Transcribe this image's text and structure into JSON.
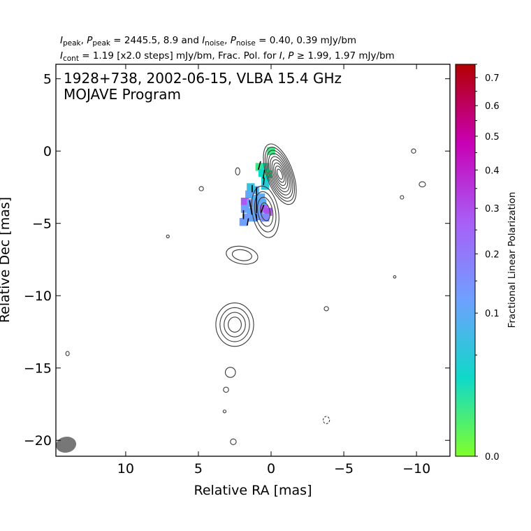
{
  "header": {
    "line1_parts": [
      {
        "t": "I",
        "it": true
      },
      {
        "t": "peak",
        "sub": true
      },
      {
        "t": ", "
      },
      {
        "t": "P",
        "it": true
      },
      {
        "t": "peak",
        "sub": true
      },
      {
        "t": " = 2445.5, 8.9 and "
      },
      {
        "t": "I",
        "it": true
      },
      {
        "t": "noise",
        "sub": true
      },
      {
        "t": ", "
      },
      {
        "t": "P",
        "it": true
      },
      {
        "t": "noise",
        "sub": true
      },
      {
        "t": " = 0.40, 0.39 mJy/bm"
      }
    ],
    "line2_parts": [
      {
        "t": "I",
        "it": true
      },
      {
        "t": "cont",
        "sub": true
      },
      {
        "t": " = 1.19 [x2.0 steps] mJy/bm, Frac. Pol. for "
      },
      {
        "t": "I",
        "it": true
      },
      {
        "t": ", "
      },
      {
        "t": "P",
        "it": true
      },
      {
        "t": " ≥ 1.99, 1.97 mJy/bm"
      }
    ]
  },
  "chart_data": {
    "type": "heatmap",
    "title": "1928+738, 2002-06-15, VLBA 15.4 GHz",
    "subtitle": "MOJAVE Program",
    "xlabel": "Relative RA [mas]",
    "ylabel": "Relative Dec [mas]",
    "xlim": [
      14.8,
      -12.3
    ],
    "ylim": [
      -21.1,
      6.0
    ],
    "xticks": [
      10,
      5,
      0,
      -5,
      -10
    ],
    "xtick_labels": [
      "10",
      "5",
      "0",
      "−5",
      "−10"
    ],
    "yticks": [
      5,
      0,
      -5,
      -10,
      -15,
      -20
    ],
    "ytick_labels": [
      "5",
      "0",
      "−5",
      "−10",
      "−15",
      "−20"
    ],
    "colorbar": {
      "label": "Fractional Linear Polarization",
      "range": [
        0.0,
        0.75
      ],
      "ticks": [
        0.0,
        0.1,
        0.2,
        0.3,
        0.4,
        0.5,
        0.6,
        0.7
      ],
      "tick_labels": [
        "0.0",
        "0.1",
        "0.2",
        "0.3",
        "0.4",
        "0.5",
        "0.6",
        "0.7"
      ],
      "scale": "sqrt",
      "colormap": [
        "#7fff2a",
        "#0fd9c9",
        "#6fa0ff",
        "#a95ef6",
        "#c800b4",
        "#b20000"
      ]
    },
    "intensity_contours": [
      {
        "name": "core-jet",
        "cx": -0.6,
        "cy": -1.6,
        "rx": 0.9,
        "ry": 2.2,
        "angle": -20,
        "levels": 9
      },
      {
        "name": "inner-jet",
        "cx": 0.4,
        "cy": -4.2,
        "rx": 0.9,
        "ry": 1.8,
        "angle": -10,
        "levels": 4
      },
      {
        "name": "knot-7",
        "cx": 2.0,
        "cy": -7.2,
        "rx": 1.1,
        "ry": 0.6,
        "angle": 10,
        "levels": 2
      },
      {
        "name": "knot-12",
        "cx": 2.5,
        "cy": -12.0,
        "rx": 1.3,
        "ry": 1.5,
        "angle": 0,
        "levels": 4
      },
      {
        "name": "blob-15",
        "cx": 2.8,
        "cy": -15.3,
        "rx": 0.35,
        "ry": 0.35,
        "angle": 0,
        "levels": 1
      },
      {
        "name": "blob-16",
        "cx": 3.1,
        "cy": -16.5,
        "rx": 0.18,
        "ry": 0.18,
        "angle": 0,
        "levels": 1
      },
      {
        "name": "blob-18",
        "cx": 3.2,
        "cy": -18.0,
        "rx": 0.1,
        "ry": 0.1,
        "angle": 0,
        "levels": 1
      },
      {
        "name": "blob-20",
        "cx": 2.6,
        "cy": -20.1,
        "rx": 0.2,
        "ry": 0.2,
        "angle": 0,
        "levels": 1
      },
      {
        "name": "noise-1",
        "cx": 2.3,
        "cy": -1.4,
        "rx": 0.15,
        "ry": 0.25,
        "angle": 0,
        "levels": 1
      },
      {
        "name": "noise-2",
        "cx": 4.8,
        "cy": -2.6,
        "rx": 0.15,
        "ry": 0.15,
        "angle": 0,
        "levels": 1
      },
      {
        "name": "noise-3",
        "cx": 7.1,
        "cy": -5.9,
        "rx": 0.1,
        "ry": 0.1,
        "angle": 0,
        "levels": 1
      },
      {
        "name": "noise-4",
        "cx": 14.0,
        "cy": -14.0,
        "rx": 0.12,
        "ry": 0.15,
        "angle": 0,
        "levels": 1
      },
      {
        "name": "noise-5",
        "cx": -9.8,
        "cy": 0.0,
        "rx": 0.15,
        "ry": 0.15,
        "angle": 0,
        "levels": 1
      },
      {
        "name": "noise-6",
        "cx": -10.4,
        "cy": -2.3,
        "rx": 0.22,
        "ry": 0.18,
        "angle": 0,
        "levels": 1
      },
      {
        "name": "noise-7",
        "cx": -9.0,
        "cy": -3.2,
        "rx": 0.12,
        "ry": 0.12,
        "angle": 0,
        "levels": 1
      },
      {
        "name": "noise-8",
        "cx": -8.5,
        "cy": -8.7,
        "rx": 0.08,
        "ry": 0.08,
        "angle": 0,
        "levels": 1
      },
      {
        "name": "noise-9",
        "cx": -3.8,
        "cy": -10.9,
        "rx": 0.15,
        "ry": 0.15,
        "angle": 0,
        "levels": 1
      },
      {
        "name": "noise-10",
        "cx": -3.8,
        "cy": -18.6,
        "rx": 0.22,
        "ry": 0.25,
        "angle": 0,
        "levels": 1,
        "dashed": true
      }
    ],
    "beam": {
      "ra": 14.1,
      "dec": -20.3,
      "major": 0.7,
      "minor": 0.55,
      "angle": -10
    },
    "polarization_pixels": [
      {
        "ra": 0.0,
        "dec": 0.0,
        "frac": 0.01
      },
      {
        "ra": 0.8,
        "dec": -1.1,
        "frac": 0.01
      },
      {
        "ra": 0.4,
        "dec": -1.1,
        "frac": 0.02
      },
      {
        "ra": 0.6,
        "dec": -1.5,
        "frac": 0.03
      },
      {
        "ra": 0.2,
        "dec": -1.6,
        "frac": 0.01
      },
      {
        "ra": 0.4,
        "dec": -2.0,
        "frac": 0.03
      },
      {
        "ra": 1.1,
        "dec": -2.7,
        "frac": 0.09
      },
      {
        "ra": 1.4,
        "dec": -2.5,
        "frac": 0.06
      },
      {
        "ra": 0.4,
        "dec": -2.4,
        "frac": 0.05
      },
      {
        "ra": 1.5,
        "dec": -3.0,
        "frac": 0.1
      },
      {
        "ra": 1.1,
        "dec": -3.3,
        "frac": 0.09
      },
      {
        "ra": 0.7,
        "dec": -3.2,
        "frac": 0.1
      },
      {
        "ra": 1.8,
        "dec": -3.5,
        "frac": 0.28
      },
      {
        "ra": 1.4,
        "dec": -3.6,
        "frac": 0.12
      },
      {
        "ra": 1.0,
        "dec": -3.7,
        "frac": 0.11
      },
      {
        "ra": 0.6,
        "dec": -3.6,
        "frac": 0.1
      },
      {
        "ra": 1.8,
        "dec": -4.0,
        "frac": 0.12
      },
      {
        "ra": 1.4,
        "dec": -4.2,
        "frac": 0.1
      },
      {
        "ra": 1.0,
        "dec": -4.1,
        "frac": 0.11
      },
      {
        "ra": 0.5,
        "dec": -4.0,
        "frac": 0.26
      },
      {
        "ra": 0.2,
        "dec": -4.2,
        "frac": 0.3
      },
      {
        "ra": 1.7,
        "dec": -4.6,
        "frac": 0.13
      },
      {
        "ra": 1.2,
        "dec": -4.6,
        "frac": 0.11
      },
      {
        "ra": 0.8,
        "dec": -4.5,
        "frac": 0.12
      },
      {
        "ra": 0.4,
        "dec": -4.6,
        "frac": 0.16
      },
      {
        "ra": 1.9,
        "dec": -4.9,
        "frac": 0.12
      }
    ],
    "evpa_vectors": [
      {
        "ra": 0.8,
        "dec": -1.0,
        "angle": 75,
        "length": 0.6
      },
      {
        "ra": 0.5,
        "dec": -1.6,
        "angle": 80,
        "length": 0.6
      },
      {
        "ra": 0.5,
        "dec": -2.1,
        "angle": 85,
        "length": 0.5
      },
      {
        "ra": 1.3,
        "dec": -2.6,
        "angle": 90,
        "length": 0.5
      },
      {
        "ra": 1.0,
        "dec": -3.4,
        "angle": 90,
        "length": 1.8
      },
      {
        "ra": 1.4,
        "dec": -3.9,
        "angle": 100,
        "length": 1.0
      },
      {
        "ra": 0.6,
        "dec": -4.0,
        "angle": 70,
        "length": 0.6
      },
      {
        "ra": 1.9,
        "dec": -4.4,
        "angle": 90,
        "length": 0.6
      },
      {
        "ra": 1.0,
        "dec": -4.6,
        "angle": 95,
        "length": 0.5
      },
      {
        "ra": 1.6,
        "dec": -4.9,
        "angle": 80,
        "length": 0.5
      }
    ]
  }
}
